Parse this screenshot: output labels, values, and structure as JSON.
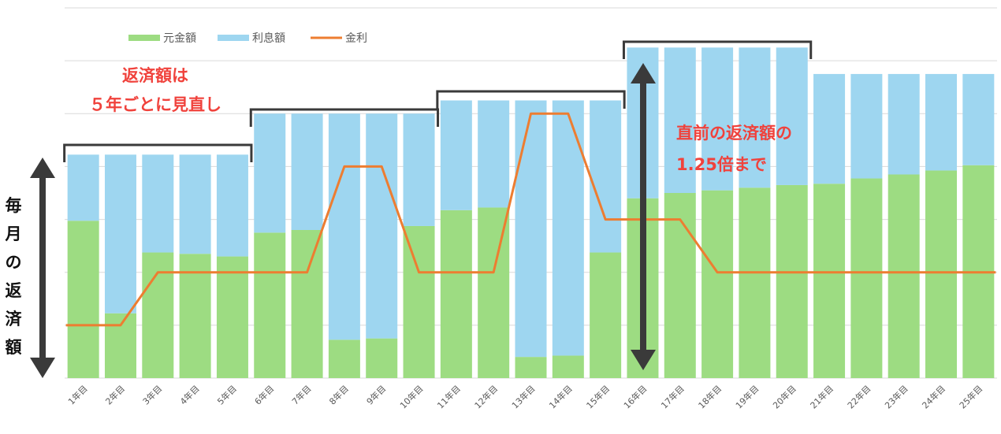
{
  "chart_data": {
    "type": "bar",
    "stacked": true,
    "categories": [
      "1年目",
      "2年目",
      "3年目",
      "4年目",
      "5年目",
      "6年目",
      "7年目",
      "8年目",
      "9年目",
      "10年目",
      "11年目",
      "12年目",
      "13年目",
      "14年目",
      "15年目",
      "16年目",
      "17年目",
      "18年目",
      "19年目",
      "20年目",
      "21年目",
      "22年目",
      "23年目",
      "24年目",
      "25年目"
    ],
    "series": [
      {
        "name": "元金額",
        "type": "bar",
        "color": "#9ddc82",
        "values": [
          59.5,
          24.5,
          47.5,
          47,
          46,
          55,
          56,
          14.5,
          15,
          57.5,
          63.5,
          64.5,
          8,
          8.5,
          47.5,
          68,
          70,
          71,
          72,
          73,
          73.5,
          75.5,
          77,
          78.5,
          80.5
        ]
      },
      {
        "name": "利息額",
        "type": "bar",
        "color": "#9ed6f0",
        "values": [
          25,
          60,
          37,
          37.5,
          38.5,
          45,
          44,
          85.5,
          85,
          42.5,
          41.5,
          40.5,
          97,
          96.5,
          57.5,
          57,
          55,
          54,
          53,
          52,
          41.5,
          39.5,
          38,
          36.5,
          34.5
        ]
      },
      {
        "name": "金利",
        "type": "line",
        "color": "#ed7d31",
        "values": [
          20,
          20,
          40,
          40,
          40,
          40,
          40,
          80,
          80,
          40,
          40,
          40,
          100,
          100,
          60,
          60,
          60,
          40,
          40,
          40,
          40,
          40,
          40,
          40,
          40
        ]
      }
    ],
    "ylim": [
      0,
      140
    ],
    "grid": true,
    "legend_position": "top-left",
    "title": "",
    "xlabel": "",
    "ylabel": "毎月の返済額"
  },
  "annotations": {
    "rev1": "返済額は",
    "rev2": "５年ごとに見直し",
    "prev1": "直前の返済額の",
    "prev2": "1.25倍まで"
  },
  "brackets": [
    [
      1,
      5
    ],
    [
      6,
      10
    ],
    [
      11,
      15
    ],
    [
      16,
      20
    ]
  ],
  "colors": {
    "accent_red": "#f0423c",
    "arrow": "#3a3a3a",
    "bracket": "#3a3a3a",
    "grid": "#d9d9d9",
    "tick_text": "#595959"
  }
}
